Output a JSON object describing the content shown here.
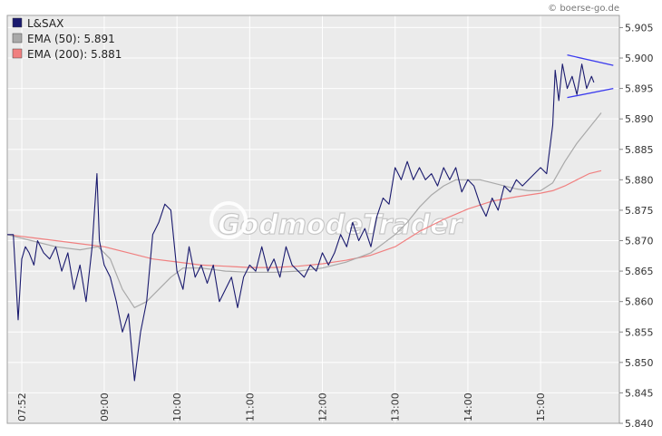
{
  "chart_data": {
    "type": "line",
    "credit": "© boerse-go.de",
    "watermark": "GodmodeTrader",
    "legend_position": "top-left",
    "grid": true,
    "ylim": [
      5.84,
      5.907
    ],
    "y_ticks": [
      "5.905",
      "5.900",
      "5.895",
      "5.890",
      "5.885",
      "5.880",
      "5.875",
      "5.870",
      "5.865",
      "5.860",
      "5.855",
      "5.850",
      "5.845",
      "5.840"
    ],
    "x_ticks": [
      "07:52",
      "09:00",
      "10:00",
      "11:00",
      "12:00",
      "13:00",
      "14:00",
      "15:00"
    ],
    "x_tick_minutes": [
      472,
      540,
      600,
      660,
      720,
      780,
      840,
      900
    ],
    "xlim_minutes": [
      460,
      965
    ],
    "series": [
      {
        "name": "L&SAX",
        "color": "#1a1a6e",
        "x": [
          460,
          465,
          469,
          472,
          475,
          478,
          482,
          485,
          490,
          495,
          500,
          505,
          510,
          515,
          520,
          525,
          530,
          534,
          536,
          540,
          545,
          550,
          555,
          560,
          565,
          570,
          575,
          580,
          585,
          590,
          595,
          600,
          605,
          610,
          615,
          620,
          625,
          630,
          635,
          640,
          645,
          650,
          655,
          660,
          665,
          670,
          675,
          680,
          685,
          690,
          695,
          700,
          705,
          710,
          715,
          720,
          725,
          730,
          735,
          740,
          745,
          750,
          755,
          760,
          765,
          770,
          775,
          780,
          785,
          790,
          795,
          800,
          805,
          810,
          815,
          820,
          825,
          830,
          835,
          840,
          845,
          850,
          855,
          860,
          865,
          870,
          875,
          880,
          885,
          890,
          895,
          900,
          905,
          910,
          912,
          915,
          918,
          922,
          926,
          930,
          934,
          938,
          942,
          944
        ],
        "values": [
          5.871,
          5.871,
          5.857,
          5.867,
          5.869,
          5.868,
          5.866,
          5.87,
          5.868,
          5.867,
          5.869,
          5.865,
          5.868,
          5.862,
          5.866,
          5.86,
          5.869,
          5.881,
          5.87,
          5.866,
          5.864,
          5.86,
          5.855,
          5.858,
          5.847,
          5.855,
          5.86,
          5.871,
          5.873,
          5.876,
          5.875,
          5.865,
          5.862,
          5.869,
          5.864,
          5.866,
          5.863,
          5.866,
          5.86,
          5.862,
          5.864,
          5.859,
          5.864,
          5.866,
          5.865,
          5.869,
          5.865,
          5.867,
          5.864,
          5.869,
          5.866,
          5.865,
          5.864,
          5.866,
          5.865,
          5.868,
          5.866,
          5.868,
          5.871,
          5.869,
          5.873,
          5.87,
          5.872,
          5.869,
          5.874,
          5.877,
          5.876,
          5.882,
          5.88,
          5.883,
          5.88,
          5.882,
          5.88,
          5.881,
          5.879,
          5.882,
          5.88,
          5.882,
          5.878,
          5.88,
          5.879,
          5.876,
          5.874,
          5.877,
          5.875,
          5.879,
          5.878,
          5.88,
          5.879,
          5.88,
          5.881,
          5.882,
          5.881,
          5.889,
          5.898,
          5.893,
          5.899,
          5.895,
          5.897,
          5.894,
          5.899,
          5.895,
          5.897,
          5.896
        ]
      },
      {
        "name": "EMA (50): 5.891",
        "color": "#a9a9a9",
        "x": [
          460,
          480,
          500,
          520,
          535,
          545,
          555,
          565,
          575,
          585,
          595,
          605,
          620,
          640,
          660,
          680,
          700,
          720,
          740,
          760,
          780,
          790,
          800,
          810,
          820,
          830,
          840,
          850,
          860,
          870,
          880,
          890,
          900,
          910,
          920,
          930,
          940,
          950
        ],
        "values": [
          5.871,
          5.87,
          5.869,
          5.8685,
          5.869,
          5.867,
          5.862,
          5.859,
          5.86,
          5.862,
          5.864,
          5.8655,
          5.8655,
          5.865,
          5.8648,
          5.8648,
          5.865,
          5.8655,
          5.8665,
          5.868,
          5.871,
          5.873,
          5.8755,
          5.8775,
          5.879,
          5.88,
          5.88,
          5.88,
          5.8795,
          5.879,
          5.8785,
          5.8782,
          5.8782,
          5.8795,
          5.883,
          5.886,
          5.8885,
          5.891
        ]
      },
      {
        "name": "EMA (200): 5.881",
        "color": "#f08080",
        "x": [
          460,
          480,
          500,
          520,
          540,
          560,
          580,
          600,
          620,
          640,
          660,
          680,
          700,
          720,
          740,
          760,
          780,
          800,
          820,
          840,
          860,
          880,
          900,
          910,
          920,
          930,
          940,
          950
        ],
        "values": [
          5.871,
          5.8705,
          5.87,
          5.8695,
          5.869,
          5.868,
          5.867,
          5.8665,
          5.866,
          5.8658,
          5.8656,
          5.8656,
          5.8658,
          5.8662,
          5.8668,
          5.8676,
          5.869,
          5.8715,
          5.8735,
          5.8752,
          5.8765,
          5.8772,
          5.8778,
          5.8782,
          5.879,
          5.88,
          5.881,
          5.8815
        ]
      }
    ],
    "annotations": {
      "triangle_upper": {
        "x": [
          922,
          960
        ],
        "y": [
          5.9005,
          5.8988
        ]
      },
      "triangle_lower": {
        "x": [
          922,
          960
        ],
        "y": [
          5.8935,
          5.895
        ]
      },
      "color": "#3a3aee"
    }
  }
}
